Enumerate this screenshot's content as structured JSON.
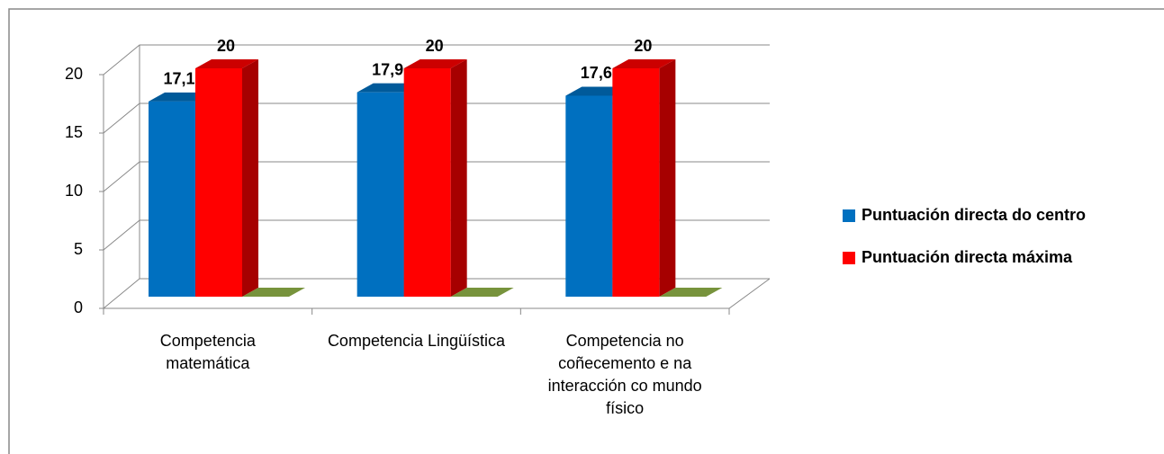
{
  "chart_data": {
    "type": "bar3d",
    "categories": [
      "Competencia matemática",
      "Competencia Lingüística",
      "Competencia no coñecemento e na interacción co mundo físico"
    ],
    "series": [
      {
        "name": "Puntuación directa do centro",
        "color": "#0070c0",
        "values": [
          17.1,
          17.9,
          17.6
        ],
        "value_labels": [
          "17,1",
          "17,9",
          "17,6"
        ]
      },
      {
        "name": "Puntuación directa máxima",
        "color": "#ff0000",
        "values": [
          20,
          20,
          20
        ],
        "value_labels": [
          "20",
          "20",
          "20"
        ]
      },
      {
        "color": "#77933c",
        "values": [
          0,
          0,
          0
        ]
      }
    ],
    "ylim": [
      0,
      20
    ],
    "yticks": [
      0,
      5,
      10,
      15,
      20
    ],
    "grid": true,
    "legend": "right"
  }
}
